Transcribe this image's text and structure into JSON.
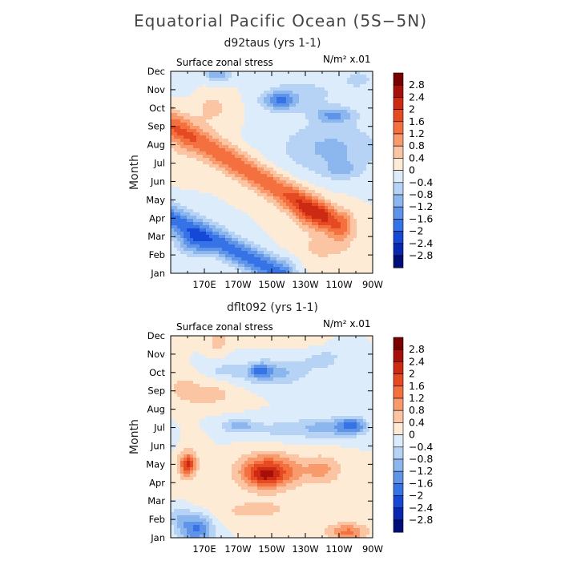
{
  "figure": {
    "title": "Equatorial Pacific Ocean (5S−5N)"
  },
  "colorbar": {
    "labels": [
      "2.8",
      "2.4",
      "2",
      "1.6",
      "1.2",
      "0.8",
      "0.4",
      "0",
      "−0.4",
      "−0.8",
      "−1.2",
      "−1.6",
      "−2",
      "−2.4",
      "−2.8"
    ],
    "colors": [
      "#7a0000",
      "#a80f0a",
      "#cc2a12",
      "#e64a22",
      "#f4703f",
      "#f89a6c",
      "#fbc4a2",
      "#feebd6",
      "#dcecfb",
      "#b6d3f5",
      "#8cb6ee",
      "#5f94e8",
      "#3673e6",
      "#1648d8",
      "#0a27b0",
      "#000f78"
    ]
  },
  "chart_data": [
    {
      "type": "heatmap",
      "title": "d92taus (yrs 1-1)",
      "variable_label": "Surface zonal stress",
      "units_label": "N/m² x.01",
      "ylabel": "Month",
      "xlabel": "",
      "x_tick_labels": [
        "170E",
        "170W",
        "150W",
        "130W",
        "110W",
        "90W"
      ],
      "x_tick_positions_deg_east": [
        170,
        190,
        210,
        230,
        250,
        270
      ],
      "xlim_deg_east": [
        150,
        270
      ],
      "y_tick_labels": [
        "Jan",
        "Feb",
        "Mar",
        "Apr",
        "May",
        "Jun",
        "Jul",
        "Aug",
        "Sep",
        "Oct",
        "Nov",
        "Dec"
      ],
      "ylim_month_index": [
        0,
        11
      ],
      "contour_levels": [
        -2.8,
        -2.4,
        -2,
        -1.6,
        -1.2,
        -0.8,
        -0.4,
        0,
        0.4,
        0.8,
        1.2,
        1.6,
        2,
        2.4,
        2.8
      ],
      "features": [
        {
          "type": "band",
          "sign": 1,
          "x_start": 152,
          "x_end": 250,
          "y_start": 8,
          "y_end": 2.6,
          "sx": 9,
          "sy": 0.85,
          "amp": 1.5
        },
        {
          "type": "band",
          "sign": -1,
          "x_start": 150,
          "x_end": 215,
          "y_start": 3.0,
          "y_end": 0.0,
          "sx": 9,
          "sy": 0.8,
          "amp": 1.8
        },
        {
          "type": "blob",
          "x": 163,
          "y": 1.6,
          "sx": 10,
          "sy": 0.7,
          "amp": -1.0
        },
        {
          "type": "blob",
          "x": 235,
          "y": 3.2,
          "sx": 12,
          "sy": 0.7,
          "amp": 0.9
        },
        {
          "type": "blob",
          "x": 225,
          "y": 4.0,
          "sx": 9,
          "sy": 0.6,
          "amp": 0.4
        },
        {
          "type": "blob",
          "x": 155,
          "y": 7.0,
          "sx": 10,
          "sy": 1.2,
          "amp": 0.3
        },
        {
          "type": "blob",
          "x": 245,
          "y": 6.8,
          "sx": 30,
          "sy": 1.4,
          "amp": -0.9
        },
        {
          "type": "blob",
          "x": 252,
          "y": 5.6,
          "sx": 11,
          "sy": 0.5,
          "amp": -0.6
        },
        {
          "type": "blob",
          "x": 215,
          "y": 9.4,
          "sx": 10,
          "sy": 0.5,
          "amp": -1.4
        },
        {
          "type": "blob",
          "x": 247,
          "y": 8.6,
          "sx": 12,
          "sy": 0.45,
          "amp": -1.1
        },
        {
          "type": "blob",
          "x": 230,
          "y": 9.8,
          "sx": 25,
          "sy": 1.0,
          "amp": -0.5
        },
        {
          "type": "blob",
          "x": 178,
          "y": 10.9,
          "sx": 8,
          "sy": 0.5,
          "amp": -1.2
        },
        {
          "type": "blob",
          "x": 175,
          "y": 9.0,
          "sx": 12,
          "sy": 1.0,
          "amp": 0.5
        },
        {
          "type": "blob",
          "x": 158,
          "y": 10.4,
          "sx": 7,
          "sy": 0.6,
          "amp": -0.4
        },
        {
          "type": "blob",
          "x": 262,
          "y": 10.6,
          "sx": 10,
          "sy": 0.6,
          "amp": -0.5
        },
        {
          "type": "blob",
          "x": 240,
          "y": 1.4,
          "sx": 18,
          "sy": 1.0,
          "amp": 0.5
        }
      ]
    },
    {
      "type": "heatmap",
      "title": "dflt092 (yrs 1-1)",
      "variable_label": "Surface zonal stress",
      "units_label": "N/m² x.01",
      "ylabel": "Month",
      "xlabel": "",
      "x_tick_labels": [
        "170E",
        "170W",
        "150W",
        "130W",
        "110W",
        "90W"
      ],
      "x_tick_positions_deg_east": [
        170,
        190,
        210,
        230,
        250,
        270
      ],
      "xlim_deg_east": [
        150,
        270
      ],
      "y_tick_labels": [
        "Jan",
        "Feb",
        "Mar",
        "Apr",
        "May",
        "Jun",
        "Jul",
        "Aug",
        "Sep",
        "Oct",
        "Nov",
        "Dec"
      ],
      "ylim_month_index": [
        0,
        11
      ],
      "contour_levels": [
        -2.8,
        -2.4,
        -2,
        -1.6,
        -1.2,
        -0.8,
        -0.4,
        0,
        0.4,
        0.8,
        1.2,
        1.6,
        2,
        2.4,
        2.8
      ],
      "features": [
        {
          "type": "blob",
          "x": 208,
          "y": 3.6,
          "sx": 17,
          "sy": 0.9,
          "amp": 2.2
        },
        {
          "type": "blob",
          "x": 205,
          "y": 3.3,
          "sx": 8,
          "sy": 0.45,
          "amp": 0.6
        },
        {
          "type": "blob",
          "x": 240,
          "y": 3.7,
          "sx": 12,
          "sy": 0.8,
          "amp": 0.9
        },
        {
          "type": "blob",
          "x": 160,
          "y": 4.0,
          "sx": 4,
          "sy": 0.5,
          "amp": 1.6
        },
        {
          "type": "blob",
          "x": 160,
          "y": 4.0,
          "sx": 8,
          "sy": 1.3,
          "amp": 0.6
        },
        {
          "type": "blob",
          "x": 215,
          "y": 5.9,
          "sx": 25,
          "sy": 0.55,
          "amp": -0.5
        },
        {
          "type": "blob",
          "x": 245,
          "y": 6.0,
          "sx": 18,
          "sy": 0.55,
          "amp": -0.9
        },
        {
          "type": "blob",
          "x": 258,
          "y": 6.1,
          "sx": 8,
          "sy": 0.45,
          "amp": -1.4
        },
        {
          "type": "blob",
          "x": 190,
          "y": 6.1,
          "sx": 10,
          "sy": 0.35,
          "amp": -0.9
        },
        {
          "type": "blob",
          "x": 210,
          "y": 9.0,
          "sx": 20,
          "sy": 0.7,
          "amp": -1.0
        },
        {
          "type": "blob",
          "x": 203,
          "y": 9.1,
          "sx": 6,
          "sy": 0.35,
          "amp": -1.2
        },
        {
          "type": "blob",
          "x": 182,
          "y": 9.1,
          "sx": 8,
          "sy": 0.3,
          "amp": -0.6
        },
        {
          "type": "blob",
          "x": 240,
          "y": 9.7,
          "sx": 12,
          "sy": 0.6,
          "amp": -0.5
        },
        {
          "type": "blob",
          "x": 165,
          "y": 0.5,
          "sx": 10,
          "sy": 0.8,
          "amp": -1.7
        },
        {
          "type": "blob",
          "x": 155,
          "y": 1.2,
          "sx": 6,
          "sy": 0.6,
          "amp": -0.6
        },
        {
          "type": "blob",
          "x": 255,
          "y": 0.3,
          "sx": 12,
          "sy": 0.5,
          "amp": 1.3
        },
        {
          "type": "blob",
          "x": 200,
          "y": 1.5,
          "sx": 30,
          "sy": 0.7,
          "amp": 0.5
        },
        {
          "type": "blob",
          "x": 170,
          "y": 7.8,
          "sx": 18,
          "sy": 0.6,
          "amp": 0.7
        },
        {
          "type": "blob",
          "x": 158,
          "y": 8.3,
          "sx": 7,
          "sy": 0.5,
          "amp": 0.4
        },
        {
          "type": "blob",
          "x": 178,
          "y": 10.7,
          "sx": 5,
          "sy": 0.5,
          "amp": 0.8
        },
        {
          "type": "blob",
          "x": 230,
          "y": 11.0,
          "sx": 25,
          "sy": 0.6,
          "amp": 0.3
        },
        {
          "type": "blob",
          "x": 252,
          "y": 10.6,
          "sx": 10,
          "sy": 0.8,
          "amp": -0.3
        },
        {
          "type": "blob",
          "x": 150,
          "y": 5.3,
          "sx": 6,
          "sy": 0.6,
          "amp": -0.3
        },
        {
          "type": "blob",
          "x": 150,
          "y": 9.5,
          "sx": 5,
          "sy": 1.2,
          "amp": 0.3
        }
      ]
    }
  ]
}
